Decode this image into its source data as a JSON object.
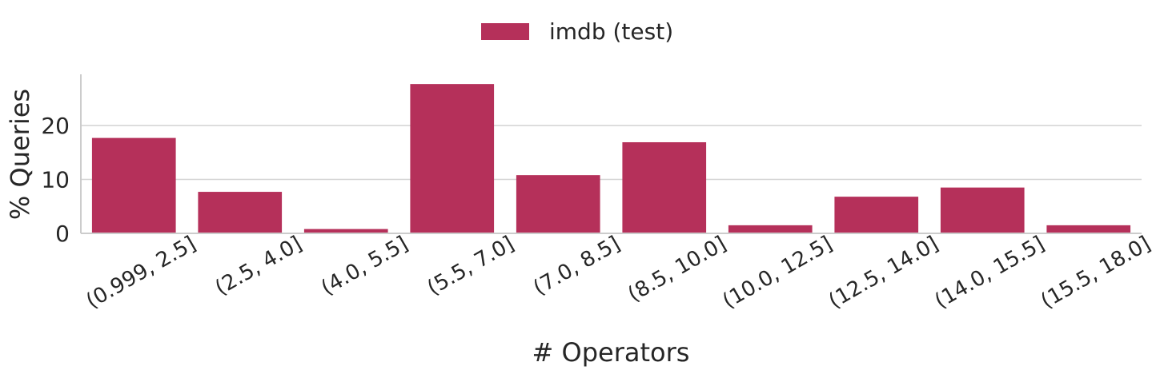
{
  "chart_data": {
    "type": "bar",
    "categories": [
      "(0.999, 2.5]",
      "(2.5, 4.0]",
      "(4.0, 5.5]",
      "(5.5, 7.0]",
      "(7.0, 8.5]",
      "(8.5, 10.0]",
      "(10.0, 12.5]",
      "(12.5, 14.0]",
      "(14.0, 15.5]",
      "(15.5, 18.0]"
    ],
    "series": [
      {
        "name": "imdb (test)",
        "values": [
          17.7,
          7.7,
          0.8,
          27.7,
          10.8,
          16.9,
          1.5,
          6.8,
          8.5,
          1.5
        ],
        "color": "#b5305a"
      }
    ],
    "xlabel": "# Operators",
    "ylabel": "% Queries",
    "ylim": [
      0,
      29.5
    ],
    "yticks": [
      0,
      10,
      20
    ],
    "grid": "horizontal",
    "legend_position": "top-center"
  }
}
